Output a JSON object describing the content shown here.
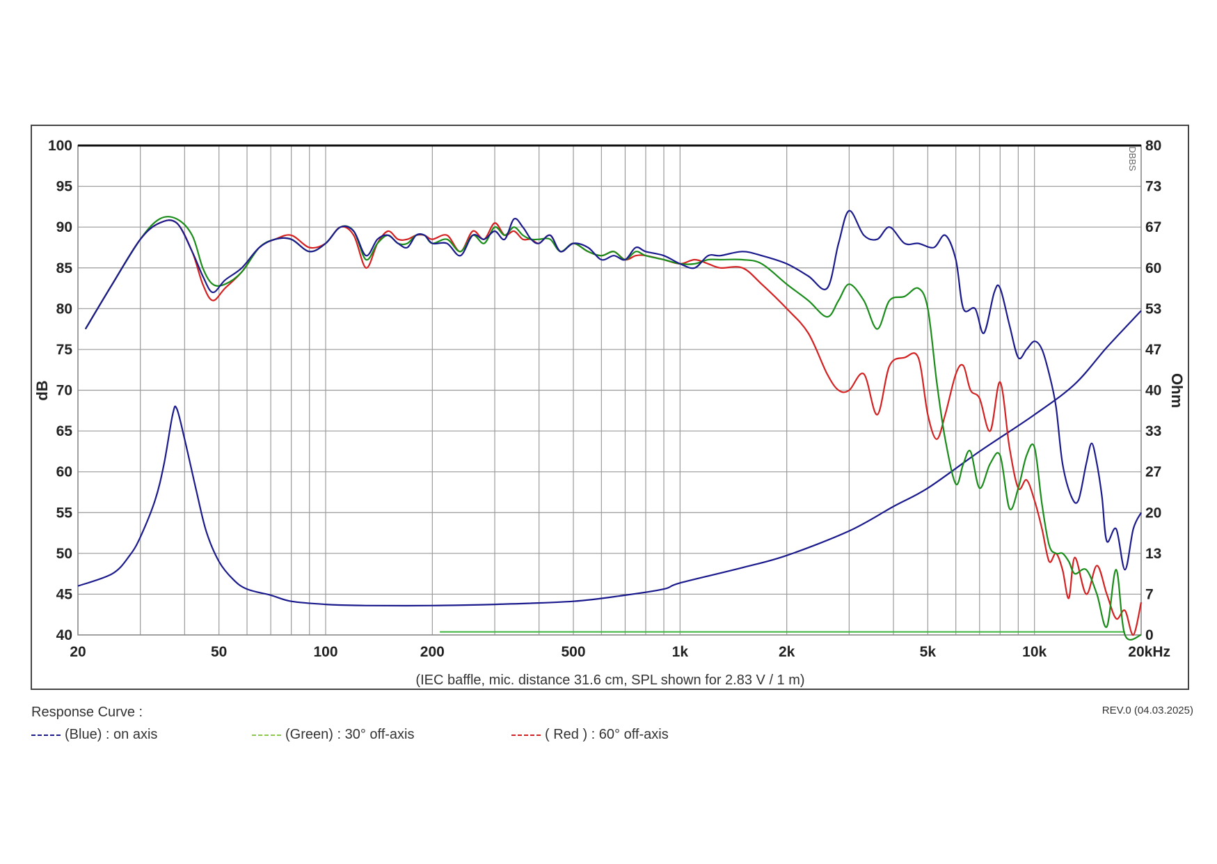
{
  "chart_data": {
    "type": "line",
    "xlabel": "",
    "x_unit_label": "kHz",
    "ylabel_left": "dB",
    "ylabel_right": "Ohm",
    "x_scale": "log",
    "xlim": [
      20,
      20000
    ],
    "ylim_left": [
      40,
      100
    ],
    "ylim_right": [
      0,
      80
    ],
    "x_tick_values": [
      20,
      50,
      100,
      200,
      500,
      1000,
      2000,
      5000,
      10000,
      20000
    ],
    "x_tick_labels": [
      "20",
      "50",
      "100",
      "200",
      "500",
      "1k",
      "2k",
      "5k",
      "10k",
      "20kHz"
    ],
    "y_left_ticks": [
      "100",
      "95",
      "90",
      "85",
      "80",
      "75",
      "70",
      "65",
      "60",
      "55",
      "50",
      "45",
      "40"
    ],
    "y_right_ticks": [
      "80",
      "73",
      "67",
      "60",
      "53",
      "47",
      "40",
      "33",
      "27",
      "20",
      "13",
      "7",
      "0"
    ],
    "grid": true,
    "note": "(IEC baffle, mic. distance 31.6 cm, SPL shown for 2.83 V / 1 m)",
    "side_code": "DBBS",
    "series": [
      {
        "name": "(Blue)  : on axis",
        "color": "#1a1a8c",
        "axis": "left",
        "points": [
          [
            21,
            77.5
          ],
          [
            25,
            83
          ],
          [
            30,
            88.5
          ],
          [
            34,
            90.5
          ],
          [
            38,
            90.5
          ],
          [
            42,
            87
          ],
          [
            45,
            84
          ],
          [
            48,
            82
          ],
          [
            52,
            83.5
          ],
          [
            58,
            85
          ],
          [
            65,
            87.5
          ],
          [
            72,
            88.5
          ],
          [
            80,
            88.5
          ],
          [
            90,
            87
          ],
          [
            100,
            88
          ],
          [
            110,
            90
          ],
          [
            120,
            89.5
          ],
          [
            130,
            86.5
          ],
          [
            140,
            88.5
          ],
          [
            150,
            89
          ],
          [
            160,
            88
          ],
          [
            170,
            87.5
          ],
          [
            180,
            89
          ],
          [
            190,
            89
          ],
          [
            200,
            88
          ],
          [
            220,
            88
          ],
          [
            240,
            86.5
          ],
          [
            260,
            89
          ],
          [
            280,
            88.5
          ],
          [
            300,
            89.5
          ],
          [
            320,
            88.5
          ],
          [
            340,
            91
          ],
          [
            360,
            90
          ],
          [
            380,
            88.5
          ],
          [
            400,
            88
          ],
          [
            430,
            89
          ],
          [
            460,
            87
          ],
          [
            500,
            88
          ],
          [
            550,
            87.5
          ],
          [
            600,
            86
          ],
          [
            650,
            86.5
          ],
          [
            700,
            86
          ],
          [
            750,
            87.5
          ],
          [
            800,
            87
          ],
          [
            900,
            86.5
          ],
          [
            1000,
            85.5
          ],
          [
            1100,
            85
          ],
          [
            1200,
            86.5
          ],
          [
            1300,
            86.5
          ],
          [
            1500,
            87
          ],
          [
            1700,
            86.5
          ],
          [
            2000,
            85.5
          ],
          [
            2300,
            84
          ],
          [
            2600,
            82.5
          ],
          [
            2800,
            88
          ],
          [
            3000,
            92
          ],
          [
            3300,
            89
          ],
          [
            3600,
            88.5
          ],
          [
            3900,
            90
          ],
          [
            4300,
            88
          ],
          [
            4700,
            88
          ],
          [
            5200,
            87.5
          ],
          [
            5600,
            89
          ],
          [
            6000,
            86
          ],
          [
            6300,
            80
          ],
          [
            6800,
            80
          ],
          [
            7200,
            77
          ],
          [
            7700,
            82
          ],
          [
            8000,
            82.5
          ],
          [
            8500,
            78
          ],
          [
            9000,
            74
          ],
          [
            9500,
            75
          ],
          [
            10000,
            76
          ],
          [
            10500,
            75
          ],
          [
            11000,
            72
          ],
          [
            11500,
            68
          ],
          [
            12000,
            61
          ],
          [
            12700,
            57
          ],
          [
            13300,
            56.5
          ],
          [
            14000,
            61
          ],
          [
            14500,
            63.5
          ],
          [
            15000,
            61
          ],
          [
            15500,
            57
          ],
          [
            16000,
            51.5
          ],
          [
            17000,
            53
          ],
          [
            18000,
            48
          ],
          [
            19000,
            53
          ],
          [
            20000,
            55
          ]
        ]
      },
      {
        "name": "(Green) : 30° off-axis",
        "color": "#1a8c1a",
        "axis": "left",
        "points": [
          [
            21,
            77.5
          ],
          [
            25,
            83
          ],
          [
            30,
            88.5
          ],
          [
            34,
            91
          ],
          [
            38,
            91
          ],
          [
            42,
            89
          ],
          [
            45,
            85
          ],
          [
            48,
            83
          ],
          [
            52,
            83
          ],
          [
            58,
            84.5
          ],
          [
            65,
            87.5
          ],
          [
            72,
            88.5
          ],
          [
            80,
            88.5
          ],
          [
            90,
            87
          ],
          [
            100,
            88
          ],
          [
            110,
            90
          ],
          [
            120,
            89.5
          ],
          [
            130,
            86
          ],
          [
            140,
            88
          ],
          [
            150,
            89
          ],
          [
            160,
            88
          ],
          [
            170,
            88
          ],
          [
            180,
            89
          ],
          [
            190,
            89
          ],
          [
            200,
            88
          ],
          [
            220,
            88.5
          ],
          [
            240,
            87
          ],
          [
            260,
            89
          ],
          [
            280,
            88
          ],
          [
            300,
            90
          ],
          [
            320,
            89
          ],
          [
            340,
            90
          ],
          [
            360,
            89
          ],
          [
            380,
            88.5
          ],
          [
            400,
            88.5
          ],
          [
            430,
            88.5
          ],
          [
            460,
            87
          ],
          [
            500,
            88
          ],
          [
            550,
            87
          ],
          [
            600,
            86.5
          ],
          [
            650,
            87
          ],
          [
            700,
            86
          ],
          [
            750,
            87
          ],
          [
            800,
            86.5
          ],
          [
            900,
            86
          ],
          [
            1000,
            85.5
          ],
          [
            1100,
            85.5
          ],
          [
            1200,
            86
          ],
          [
            1300,
            86
          ],
          [
            1500,
            86
          ],
          [
            1700,
            85.5
          ],
          [
            2000,
            83
          ],
          [
            2300,
            81
          ],
          [
            2600,
            79
          ],
          [
            2800,
            81
          ],
          [
            3000,
            83
          ],
          [
            3300,
            81
          ],
          [
            3600,
            77.5
          ],
          [
            3900,
            81
          ],
          [
            4300,
            81.5
          ],
          [
            4700,
            82.5
          ],
          [
            5000,
            80
          ],
          [
            5300,
            71
          ],
          [
            5600,
            64
          ],
          [
            6000,
            58.5
          ],
          [
            6300,
            61
          ],
          [
            6600,
            62.5
          ],
          [
            7000,
            58
          ],
          [
            7500,
            61
          ],
          [
            8000,
            62
          ],
          [
            8500,
            55.5
          ],
          [
            9000,
            58
          ],
          [
            9500,
            62
          ],
          [
            10000,
            63
          ],
          [
            10500,
            56
          ],
          [
            11000,
            51
          ],
          [
            11500,
            50
          ],
          [
            12000,
            50
          ],
          [
            12500,
            49
          ],
          [
            13000,
            47.5
          ],
          [
            14000,
            48
          ],
          [
            15000,
            45
          ],
          [
            16000,
            41
          ],
          [
            17000,
            48
          ],
          [
            18000,
            40
          ],
          [
            20000,
            40
          ]
        ]
      },
      {
        "name": "( Red ) : 60° off-axis",
        "color": "#d42020",
        "axis": "left",
        "points": [
          [
            21,
            77.5
          ],
          [
            25,
            83
          ],
          [
            30,
            88.5
          ],
          [
            34,
            90.5
          ],
          [
            38,
            90.5
          ],
          [
            42,
            87
          ],
          [
            45,
            83
          ],
          [
            48,
            81
          ],
          [
            52,
            82.5
          ],
          [
            58,
            84.5
          ],
          [
            65,
            87.5
          ],
          [
            72,
            88.5
          ],
          [
            80,
            89
          ],
          [
            90,
            87.5
          ],
          [
            100,
            88
          ],
          [
            110,
            90
          ],
          [
            120,
            89
          ],
          [
            130,
            85
          ],
          [
            140,
            88
          ],
          [
            150,
            89.5
          ],
          [
            160,
            88.5
          ],
          [
            170,
            88.5
          ],
          [
            180,
            89
          ],
          [
            190,
            89
          ],
          [
            200,
            88.5
          ],
          [
            220,
            89
          ],
          [
            240,
            87
          ],
          [
            260,
            89.5
          ],
          [
            280,
            88.5
          ],
          [
            300,
            90.5
          ],
          [
            320,
            89
          ],
          [
            340,
            89.5
          ],
          [
            360,
            88.5
          ],
          [
            380,
            88.5
          ],
          [
            400,
            88
          ],
          [
            430,
            89
          ],
          [
            460,
            87
          ],
          [
            500,
            88
          ],
          [
            550,
            87
          ],
          [
            600,
            86.5
          ],
          [
            650,
            87
          ],
          [
            700,
            86
          ],
          [
            750,
            86.5
          ],
          [
            800,
            86.5
          ],
          [
            900,
            86
          ],
          [
            1000,
            85.5
          ],
          [
            1100,
            86
          ],
          [
            1200,
            85.5
          ],
          [
            1300,
            85
          ],
          [
            1500,
            85
          ],
          [
            1700,
            83
          ],
          [
            2000,
            80
          ],
          [
            2300,
            77
          ],
          [
            2600,
            72
          ],
          [
            2800,
            70
          ],
          [
            3000,
            70
          ],
          [
            3300,
            72
          ],
          [
            3600,
            67
          ],
          [
            3900,
            73
          ],
          [
            4300,
            74
          ],
          [
            4700,
            74
          ],
          [
            5000,
            67
          ],
          [
            5300,
            64
          ],
          [
            5600,
            67
          ],
          [
            6000,
            72
          ],
          [
            6300,
            73
          ],
          [
            6600,
            70
          ],
          [
            7000,
            69
          ],
          [
            7500,
            65
          ],
          [
            8000,
            71
          ],
          [
            8500,
            63
          ],
          [
            9000,
            58
          ],
          [
            9500,
            59
          ],
          [
            10000,
            56.5
          ],
          [
            10500,
            53
          ],
          [
            11000,
            49
          ],
          [
            11500,
            50
          ],
          [
            12000,
            48
          ],
          [
            12500,
            44.5
          ],
          [
            13000,
            49.5
          ],
          [
            14000,
            45
          ],
          [
            15000,
            48.5
          ],
          [
            16000,
            45
          ],
          [
            17000,
            42
          ],
          [
            18000,
            43
          ],
          [
            19000,
            40
          ],
          [
            20000,
            44
          ]
        ]
      },
      {
        "name": "Impedance",
        "color": "#1a1a8c",
        "axis": "right",
        "points": [
          [
            20,
            8
          ],
          [
            25,
            10
          ],
          [
            28,
            13
          ],
          [
            30,
            16
          ],
          [
            33,
            22
          ],
          [
            35,
            28
          ],
          [
            37,
            36
          ],
          [
            38,
            37
          ],
          [
            40,
            32
          ],
          [
            43,
            24
          ],
          [
            46,
            17
          ],
          [
            50,
            12
          ],
          [
            55,
            9
          ],
          [
            60,
            7.5
          ],
          [
            70,
            6.5
          ],
          [
            80,
            5.5
          ],
          [
            100,
            5
          ],
          [
            130,
            4.8
          ],
          [
            200,
            4.8
          ],
          [
            300,
            5
          ],
          [
            500,
            5.5
          ],
          [
            700,
            6.5
          ],
          [
            900,
            7.5
          ],
          [
            1000,
            8.5
          ],
          [
            1500,
            11
          ],
          [
            2000,
            13
          ],
          [
            3000,
            17
          ],
          [
            4000,
            21
          ],
          [
            5000,
            24
          ],
          [
            7000,
            30
          ],
          [
            10000,
            36
          ],
          [
            13000,
            41
          ],
          [
            16000,
            47
          ],
          [
            20000,
            53
          ]
        ]
      },
      {
        "name": "Reference",
        "color": "#3cb43c",
        "axis": "right",
        "points": [
          [
            210,
            0.5
          ],
          [
            18000,
            0.5
          ]
        ]
      }
    ]
  },
  "legend": {
    "title": "Response Curve :",
    "items": [
      {
        "label": "(Blue)  : on axis",
        "color": "#1a1a8c"
      },
      {
        "label": "(Green) : 30° off-axis",
        "color": "#8cc84b"
      },
      {
        "label": "( Red ) : 60° off-axis",
        "color": "#d42020"
      }
    ]
  },
  "revision": "REV.0 (04.03.2025)"
}
